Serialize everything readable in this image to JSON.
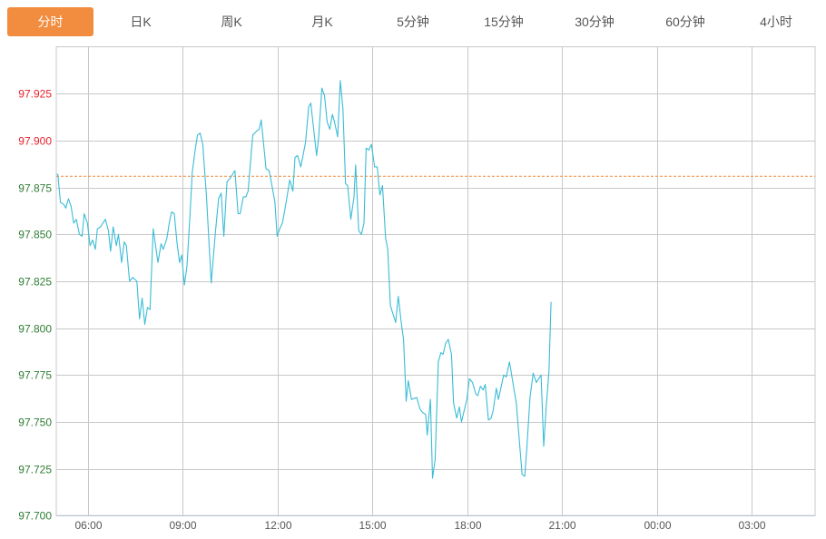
{
  "tabs": [
    {
      "label": "分时",
      "active": true
    },
    {
      "label": "日K"
    },
    {
      "label": "周K"
    },
    {
      "label": "月K"
    },
    {
      "label": "5分钟"
    },
    {
      "label": "15分钟"
    },
    {
      "label": "30分钟"
    },
    {
      "label": "60分钟"
    },
    {
      "label": "4小时"
    }
  ],
  "colors": {
    "accent": "#f28c3e",
    "line": "#3bbcd6",
    "up": "#e8212b",
    "down": "#2e7d32",
    "prev_close": "#f28c3e",
    "grid": "#c8c8c8"
  },
  "chart_data": {
    "type": "line",
    "xlim": [
      "05:00",
      "05:00 (+1d)"
    ],
    "ylim": [
      97.7,
      97.95
    ],
    "grid": true,
    "prev_close": 97.881,
    "y_ticks": [
      "97.700",
      "97.725",
      "97.750",
      "97.775",
      "97.800",
      "97.825",
      "97.850",
      "97.875",
      "97.900",
      "97.925"
    ],
    "x_ticks": [
      "06:00",
      "09:00",
      "12:00",
      "15:00",
      "18:00",
      "21:00",
      "00:00",
      "03:00"
    ],
    "series": [
      {
        "points": [
          [
            "05:01",
            97.882
          ],
          [
            "05:03",
            97.882
          ],
          [
            "05:08",
            97.867
          ],
          [
            "05:14",
            97.866
          ],
          [
            "05:18",
            97.864
          ],
          [
            "05:23",
            97.869
          ],
          [
            "05:28",
            97.865
          ],
          [
            "05:33",
            97.856
          ],
          [
            "05:38",
            97.858
          ],
          [
            "05:44",
            97.85
          ],
          [
            "05:49",
            97.849
          ],
          [
            "05:53",
            97.861
          ],
          [
            "05:59",
            97.856
          ],
          [
            "06:04",
            97.844
          ],
          [
            "06:09",
            97.847
          ],
          [
            "06:14",
            97.842
          ],
          [
            "06:18",
            97.853
          ],
          [
            "06:24",
            97.854
          ],
          [
            "06:33",
            97.858
          ],
          [
            "06:39",
            97.852
          ],
          [
            "06:43",
            97.841
          ],
          [
            "06:48",
            97.854
          ],
          [
            "06:54",
            97.844
          ],
          [
            "06:58",
            97.85
          ],
          [
            "07:04",
            97.835
          ],
          [
            "07:09",
            97.846
          ],
          [
            "07:13",
            97.844
          ],
          [
            "07:19",
            97.825
          ],
          [
            "07:25",
            97.827
          ],
          [
            "07:33",
            97.825
          ],
          [
            "07:38",
            97.805
          ],
          [
            "07:43",
            97.816
          ],
          [
            "07:48",
            97.802
          ],
          [
            "07:53",
            97.811
          ],
          [
            "07:58",
            97.81
          ],
          [
            "08:04",
            97.853
          ],
          [
            "08:13",
            97.835
          ],
          [
            "08:19",
            97.845
          ],
          [
            "08:23",
            97.842
          ],
          [
            "08:30",
            97.848
          ],
          [
            "08:35",
            97.857
          ],
          [
            "08:39",
            97.862
          ],
          [
            "08:44",
            97.861
          ],
          [
            "08:49",
            97.846
          ],
          [
            "08:54",
            97.835
          ],
          [
            "08:58",
            97.839
          ],
          [
            "09:03",
            97.823
          ],
          [
            "09:08",
            97.833
          ],
          [
            "09:14",
            97.862
          ],
          [
            "09:18",
            97.883
          ],
          [
            "09:24",
            97.896
          ],
          [
            "09:28",
            97.903
          ],
          [
            "09:33",
            97.904
          ],
          [
            "09:38",
            97.898
          ],
          [
            "09:45",
            97.87
          ],
          [
            "09:54",
            97.824
          ],
          [
            "10:02",
            97.851
          ],
          [
            "10:08",
            97.869
          ],
          [
            "10:13",
            97.872
          ],
          [
            "10:18",
            97.849
          ],
          [
            "10:24",
            97.878
          ],
          [
            "10:30",
            97.88
          ],
          [
            "10:39",
            97.884
          ],
          [
            "10:45",
            97.861
          ],
          [
            "10:49",
            97.861
          ],
          [
            "10:55",
            97.87
          ],
          [
            "11:00",
            97.87
          ],
          [
            "11:04",
            97.873
          ],
          [
            "11:13",
            97.903
          ],
          [
            "11:20",
            97.905
          ],
          [
            "11:25",
            97.906
          ],
          [
            "11:29",
            97.911
          ],
          [
            "11:38",
            97.885
          ],
          [
            "11:44",
            97.884
          ],
          [
            "11:50",
            97.875
          ],
          [
            "11:55",
            97.867
          ],
          [
            "11:59",
            97.849
          ],
          [
            "12:04",
            97.853
          ],
          [
            "12:09",
            97.856
          ],
          [
            "12:15",
            97.865
          ],
          [
            "12:23",
            97.879
          ],
          [
            "12:29",
            97.873
          ],
          [
            "12:33",
            97.891
          ],
          [
            "12:38",
            97.892
          ],
          [
            "12:44",
            97.886
          ],
          [
            "12:53",
            97.899
          ],
          [
            "12:59",
            97.918
          ],
          [
            "13:03",
            97.92
          ],
          [
            "13:14",
            97.892
          ],
          [
            "13:18",
            97.902
          ],
          [
            "13:24",
            97.928
          ],
          [
            "13:29",
            97.924
          ],
          [
            "13:34",
            97.91
          ],
          [
            "13:39",
            97.906
          ],
          [
            "13:44",
            97.914
          ],
          [
            "13:48",
            97.91
          ],
          [
            "13:54",
            97.902
          ],
          [
            "13:59",
            97.932
          ],
          [
            "14:04",
            97.917
          ],
          [
            "14:09",
            97.877
          ],
          [
            "14:13",
            97.876
          ],
          [
            "14:19",
            97.858
          ],
          [
            "14:25",
            97.87
          ],
          [
            "14:28",
            97.887
          ],
          [
            "14:34",
            97.852
          ],
          [
            "14:39",
            97.85
          ],
          [
            "14:44",
            97.856
          ],
          [
            "14:48",
            97.896
          ],
          [
            "14:53",
            97.895
          ],
          [
            "14:58",
            97.898
          ],
          [
            "15:04",
            97.886
          ],
          [
            "15:09",
            97.886
          ],
          [
            "15:14",
            97.871
          ],
          [
            "15:19",
            97.876
          ],
          [
            "15:25",
            97.848
          ],
          [
            "15:29",
            97.842
          ],
          [
            "15:34",
            97.812
          ],
          [
            "15:44",
            97.803
          ],
          [
            "15:49",
            97.817
          ],
          [
            "15:55",
            97.802
          ],
          [
            "15:59",
            97.794
          ],
          [
            "16:04",
            97.761
          ],
          [
            "16:08",
            97.772
          ],
          [
            "16:14",
            97.762
          ],
          [
            "16:24",
            97.763
          ],
          [
            "16:30",
            97.757
          ],
          [
            "16:35",
            97.755
          ],
          [
            "16:41",
            97.754
          ],
          [
            "16:44",
            97.743
          ],
          [
            "16:50",
            97.762
          ],
          [
            "16:54",
            97.72
          ],
          [
            "16:59",
            97.73
          ],
          [
            "17:05",
            97.782
          ],
          [
            "17:10",
            97.787
          ],
          [
            "17:14",
            97.786
          ],
          [
            "17:19",
            97.792
          ],
          [
            "17:24",
            97.794
          ],
          [
            "17:30",
            97.786
          ],
          [
            "17:34",
            97.76
          ],
          [
            "17:40",
            97.752
          ],
          [
            "17:45",
            97.758
          ],
          [
            "17:49",
            97.75
          ],
          [
            "17:59",
            97.762
          ],
          [
            "18:04",
            97.773
          ],
          [
            "18:10",
            97.771
          ],
          [
            "18:16",
            97.765
          ],
          [
            "18:20",
            97.764
          ],
          [
            "18:25",
            97.769
          ],
          [
            "18:30",
            97.767
          ],
          [
            "18:34",
            97.77
          ],
          [
            "18:40",
            97.751
          ],
          [
            "18:45",
            97.752
          ],
          [
            "18:49",
            97.756
          ],
          [
            "18:55",
            97.768
          ],
          [
            "18:59",
            97.762
          ],
          [
            "19:09",
            97.775
          ],
          [
            "19:14",
            97.774
          ],
          [
            "19:20",
            97.782
          ],
          [
            "19:33",
            97.76
          ],
          [
            "19:44",
            97.722
          ],
          [
            "19:49",
            97.721
          ],
          [
            "19:53",
            97.736
          ],
          [
            "19:59",
            97.763
          ],
          [
            "20:05",
            97.776
          ],
          [
            "20:11",
            97.771
          ],
          [
            "20:20",
            97.775
          ],
          [
            "20:25",
            97.737
          ],
          [
            "20:30",
            97.759
          ],
          [
            "20:35",
            97.777
          ],
          [
            "20:39",
            97.814
          ]
        ]
      }
    ]
  }
}
